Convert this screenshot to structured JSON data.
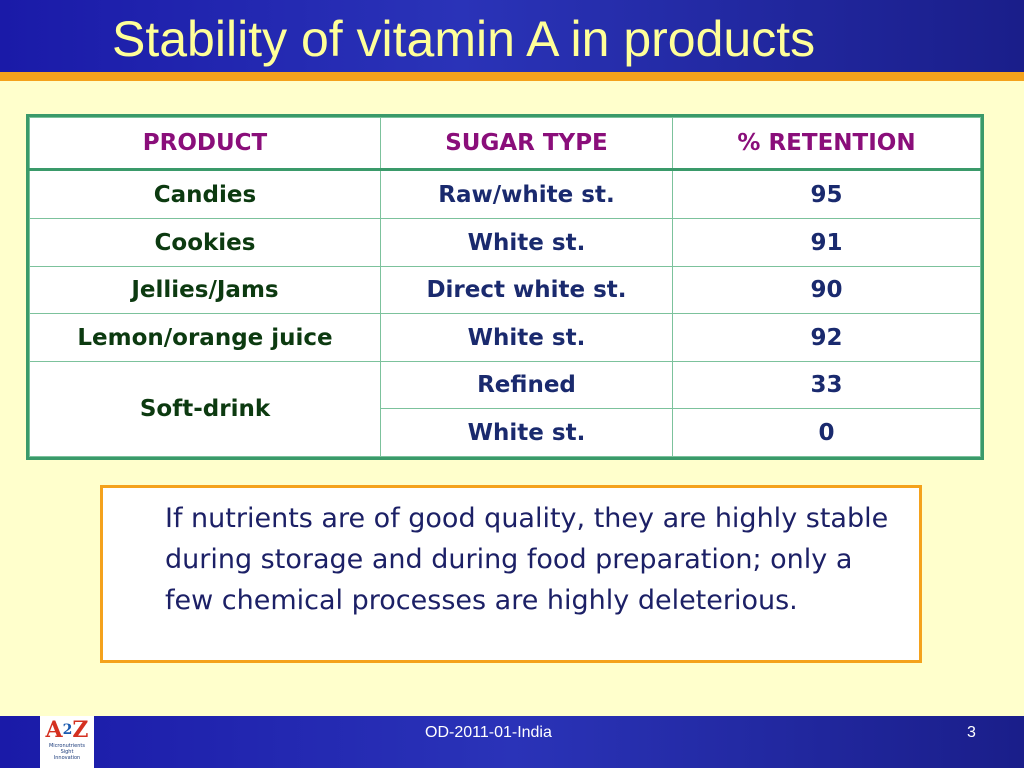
{
  "slide": {
    "title": "Stability of vitamin A in products",
    "footer_code": "OD-2011-01-India",
    "page_number": "3"
  },
  "table": {
    "headers": [
      "PRODUCT",
      "SUGAR TYPE",
      "% RETENTION"
    ],
    "rows": [
      {
        "product": "Candies",
        "sugar_type": "Raw/white st.",
        "retention": "95"
      },
      {
        "product": "Cookies",
        "sugar_type": "White st.",
        "retention": "91"
      },
      {
        "product": "Jellies/Jams",
        "sugar_type": "Direct white st.",
        "retention": "90"
      },
      {
        "product": "Lemon/orange juice",
        "sugar_type": "White st.",
        "retention": "92"
      },
      {
        "product": "Soft-drink",
        "sugar_type": "Refined",
        "retention": "33"
      },
      {
        "product": "",
        "sugar_type": "White st.",
        "retention": "0"
      }
    ]
  },
  "note": {
    "text": "If nutrients are of good quality, they are highly stable during storage and during food preparation;  only a few chemical processes are highly deleterious."
  },
  "logo": {
    "letter_a": "A",
    "digit": "2",
    "letter_z": "Z",
    "line1": "Micronutrients",
    "line2": "Sight",
    "line3": "Innovation"
  },
  "colors": {
    "header_blue": "#2a33b8",
    "accent_orange": "#f4a21c",
    "title_yellow": "#ffff99",
    "table_border_green": "#3a9a6a",
    "header_text_purple": "#8a0e7a",
    "background": "#ffffcc"
  }
}
